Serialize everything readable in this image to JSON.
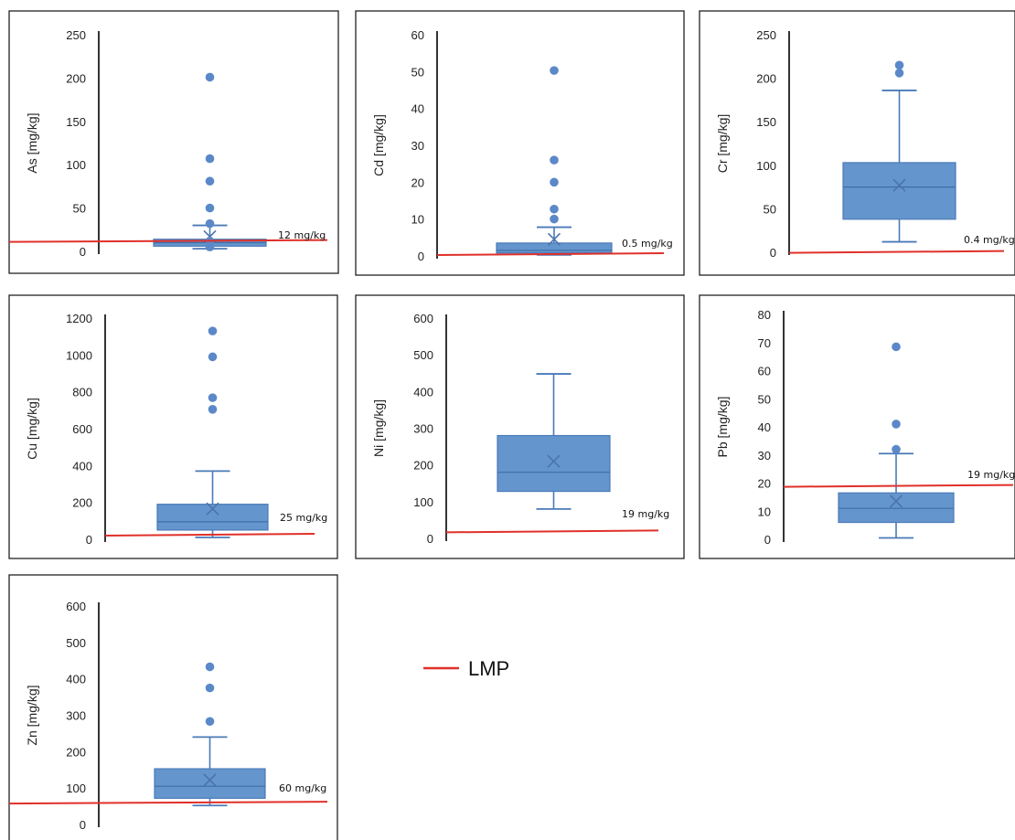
{
  "colors": {
    "box_fill": "#6595cd",
    "box_stroke": "#4a7ab8",
    "outlier": "#5b88c8",
    "lmp_line": "#e0302a"
  },
  "legend": {
    "label": "LMP"
  },
  "chart_data": [
    {
      "type": "box",
      "element": "As",
      "ylabel": "As [mg/kg]",
      "ylim": [
        0,
        250
      ],
      "yticks": [
        0,
        50,
        100,
        150,
        200,
        250
      ],
      "min": 3,
      "q1": 6,
      "median": 10,
      "q3": 14,
      "max": 30,
      "mean": 17,
      "outliers": [
        5,
        12,
        32,
        50,
        81,
        107,
        201
      ],
      "lmp": {
        "value": 12,
        "label": "12 mg/kg"
      }
    },
    {
      "type": "box",
      "element": "Cd",
      "ylabel": "Cd [mg/kg]",
      "ylim": [
        0,
        60
      ],
      "yticks": [
        0,
        10,
        20,
        30,
        40,
        50,
        60
      ],
      "min": 0.3,
      "q1": 0.8,
      "median": 1.5,
      "q3": 3.5,
      "max": 7.8,
      "mean": 4.5,
      "outliers": [
        10,
        12.7,
        20,
        26,
        50.3
      ],
      "lmp": {
        "value": 0.5,
        "label": "0.5 mg/kg"
      }
    },
    {
      "type": "box",
      "element": "Cr",
      "ylabel": "Cr [mg/kg]",
      "ylim": [
        0,
        250
      ],
      "yticks": [
        0,
        50,
        100,
        150,
        200,
        250
      ],
      "min": 12,
      "q1": 38,
      "median": 75,
      "q3": 103,
      "max": 186,
      "mean": 77,
      "outliers": [
        206,
        215
      ],
      "lmp": {
        "value": 0.4,
        "label": "0.4 mg/kg"
      }
    },
    {
      "type": "box",
      "element": "Cu",
      "ylabel": "Cu [mg/kg]",
      "ylim": [
        0,
        1200
      ],
      "yticks": [
        0,
        200,
        400,
        600,
        800,
        1000,
        1200
      ],
      "min": 10,
      "q1": 50,
      "median": 95,
      "q3": 190,
      "max": 370,
      "mean": 165,
      "outliers": [
        705,
        768,
        990,
        1130
      ],
      "lmp": {
        "value": 25,
        "label": "25 mg/kg"
      }
    },
    {
      "type": "box",
      "element": "Ni",
      "ylabel": "Ni [mg/kg]",
      "ylim": [
        0,
        600
      ],
      "yticks": [
        0,
        100,
        200,
        300,
        400,
        500,
        600
      ],
      "min": 80,
      "q1": 128,
      "median": 180,
      "q3": 280,
      "max": 448,
      "mean": 210,
      "outliers": [],
      "lmp": {
        "value": 19,
        "label": "19 mg/kg"
      }
    },
    {
      "type": "box",
      "element": "Pb",
      "ylabel": "Pb [mg/kg]",
      "ylim": [
        0,
        80
      ],
      "yticks": [
        0,
        10,
        20,
        30,
        40,
        50,
        60,
        70,
        80
      ],
      "min": 0.5,
      "q1": 6,
      "median": 11,
      "q3": 16.5,
      "max": 30.5,
      "mean": 13.5,
      "outliers": [
        32,
        41,
        68.5
      ],
      "lmp": {
        "value": 19,
        "label": "19 mg/kg"
      }
    },
    {
      "type": "box",
      "element": "Zn",
      "ylabel": "Zn [mg/kg]",
      "ylim": [
        0,
        600
      ],
      "yticks": [
        0,
        100,
        200,
        300,
        400,
        500,
        600
      ],
      "min": 52,
      "q1": 72,
      "median": 105,
      "q3": 153,
      "max": 240,
      "mean": 122,
      "outliers": [
        283,
        375,
        433
      ],
      "lmp": {
        "value": 60,
        "label": "60 mg/kg"
      }
    }
  ]
}
